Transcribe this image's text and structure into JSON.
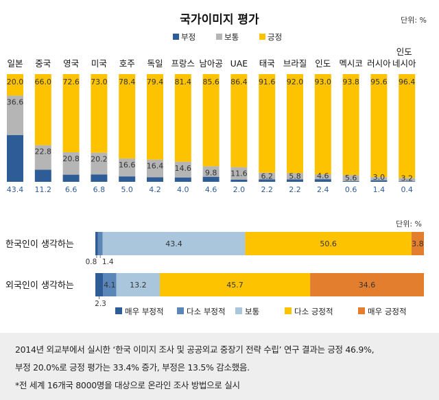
{
  "chart_data": [
    {
      "type": "bar",
      "stacked": true,
      "title": "국가이미지 평가",
      "unit_label": "단위: %",
      "legend": [
        "부정",
        "보통",
        "긍정"
      ],
      "categories": [
        "일본",
        "중국",
        "영국",
        "미국",
        "호주",
        "독일",
        "프랑스",
        "남아공",
        "UAE",
        "태국",
        "브라질",
        "인도",
        "멕시코",
        "러시아",
        "인도네시아"
      ],
      "category_lines": [
        [
          "일본"
        ],
        [
          "중국"
        ],
        [
          "영국"
        ],
        [
          "미국"
        ],
        [
          "호주"
        ],
        [
          "독일"
        ],
        [
          "프랑스"
        ],
        [
          "남아공"
        ],
        [
          "UAE"
        ],
        [
          "태국"
        ],
        [
          "브라질"
        ],
        [
          "인도"
        ],
        [
          "멕시코"
        ],
        [
          "러시아"
        ],
        [
          "인도",
          "네시아"
        ]
      ],
      "series": [
        {
          "name": "부정",
          "values": [
            43.4,
            11.2,
            6.6,
            6.8,
            5.0,
            4.2,
            4.0,
            4.6,
            2.0,
            2.2,
            2.2,
            2.4,
            0.6,
            1.4,
            0.4
          ]
        },
        {
          "name": "보통",
          "values": [
            36.6,
            22.8,
            20.8,
            20.2,
            16.6,
            16.4,
            14.6,
            9.8,
            11.6,
            6.2,
            5.8,
            4.6,
            5.6,
            3.0,
            3.2
          ]
        },
        {
          "name": "긍정",
          "values": [
            20.0,
            66.0,
            72.6,
            73.0,
            78.4,
            79.4,
            81.4,
            85.6,
            86.4,
            91.6,
            92.0,
            93.0,
            93.8,
            95.6,
            96.4
          ]
        }
      ],
      "labels": {
        "부정": [
          "43.4",
          "11.2",
          "6.6",
          "6.8",
          "5.0",
          "4.2",
          "4.0",
          "4.6",
          "2.0",
          "2.2",
          "2.2",
          "2.4",
          "0.6",
          "1.4",
          "0.4"
        ],
        "보통": [
          "36.6",
          "22.8",
          "20.8",
          "20.2",
          "16.6",
          "16.4",
          "14.6",
          "9.8",
          "11.6",
          "6.2",
          "5.8",
          "4.6",
          "5.6",
          "3.0",
          "3.2"
        ],
        "긍정": [
          "20.0",
          "66.0",
          "72.6",
          "73.0",
          "78.4",
          "79.4",
          "81.4",
          "85.6",
          "86.4",
          "91.6",
          "92.0",
          "93.0",
          "93.8",
          "95.6",
          "96.4"
        ]
      },
      "colors": {
        "부정": "#2e5c96",
        "보통": "#b5b5b5",
        "긍정": "#fdc300"
      },
      "ylim": [
        0,
        100
      ]
    },
    {
      "type": "bar",
      "orientation": "horizontal",
      "stacked": true,
      "unit_label": "단위: %",
      "categories": [
        "한국인이 생각하는",
        "외국인이 생각하는"
      ],
      "legend": [
        "매우 부정적",
        "다소 부정적",
        "보통",
        "다소 긍정적",
        "매우 긍정적"
      ],
      "series": [
        {
          "name": "매우 부정적",
          "values": [
            0.8,
            2.3
          ]
        },
        {
          "name": "다소 부정적",
          "values": [
            1.4,
            4.1
          ]
        },
        {
          "name": "보통",
          "values": [
            43.4,
            13.2
          ]
        },
        {
          "name": "다소 긍정적",
          "values": [
            50.6,
            45.7
          ]
        },
        {
          "name": "매우 긍정적",
          "values": [
            3.8,
            34.6
          ]
        }
      ],
      "labels": [
        [
          "0.8",
          "1.4",
          "43.4",
          "50.6",
          "3.8"
        ],
        [
          "2.3",
          "4.1",
          "13.2",
          "45.7",
          "34.6"
        ]
      ],
      "colors": {
        "매우 부정적": "#2e5c96",
        "다소 부정적": "#5b87b8",
        "보통": "#a9c6dc",
        "다소 긍정적": "#fdc300",
        "매우 긍정적": "#e37e2e"
      },
      "xlim": [
        0,
        100
      ]
    }
  ],
  "footer": {
    "line1": "2014년 외교부에서 실시한 ‘한국 이미지 조사 및 공공외교 중장기 전략 수립’ 연구 결과는 긍정 46.9%,",
    "line2": "부정 20.0%로 긍정 평가는 33.4% 증가, 부정은 13.5% 감소했음.",
    "line3": "*전 세계 16개국 8000명을 대상으로 온라인 조사 방법으로 실시"
  }
}
